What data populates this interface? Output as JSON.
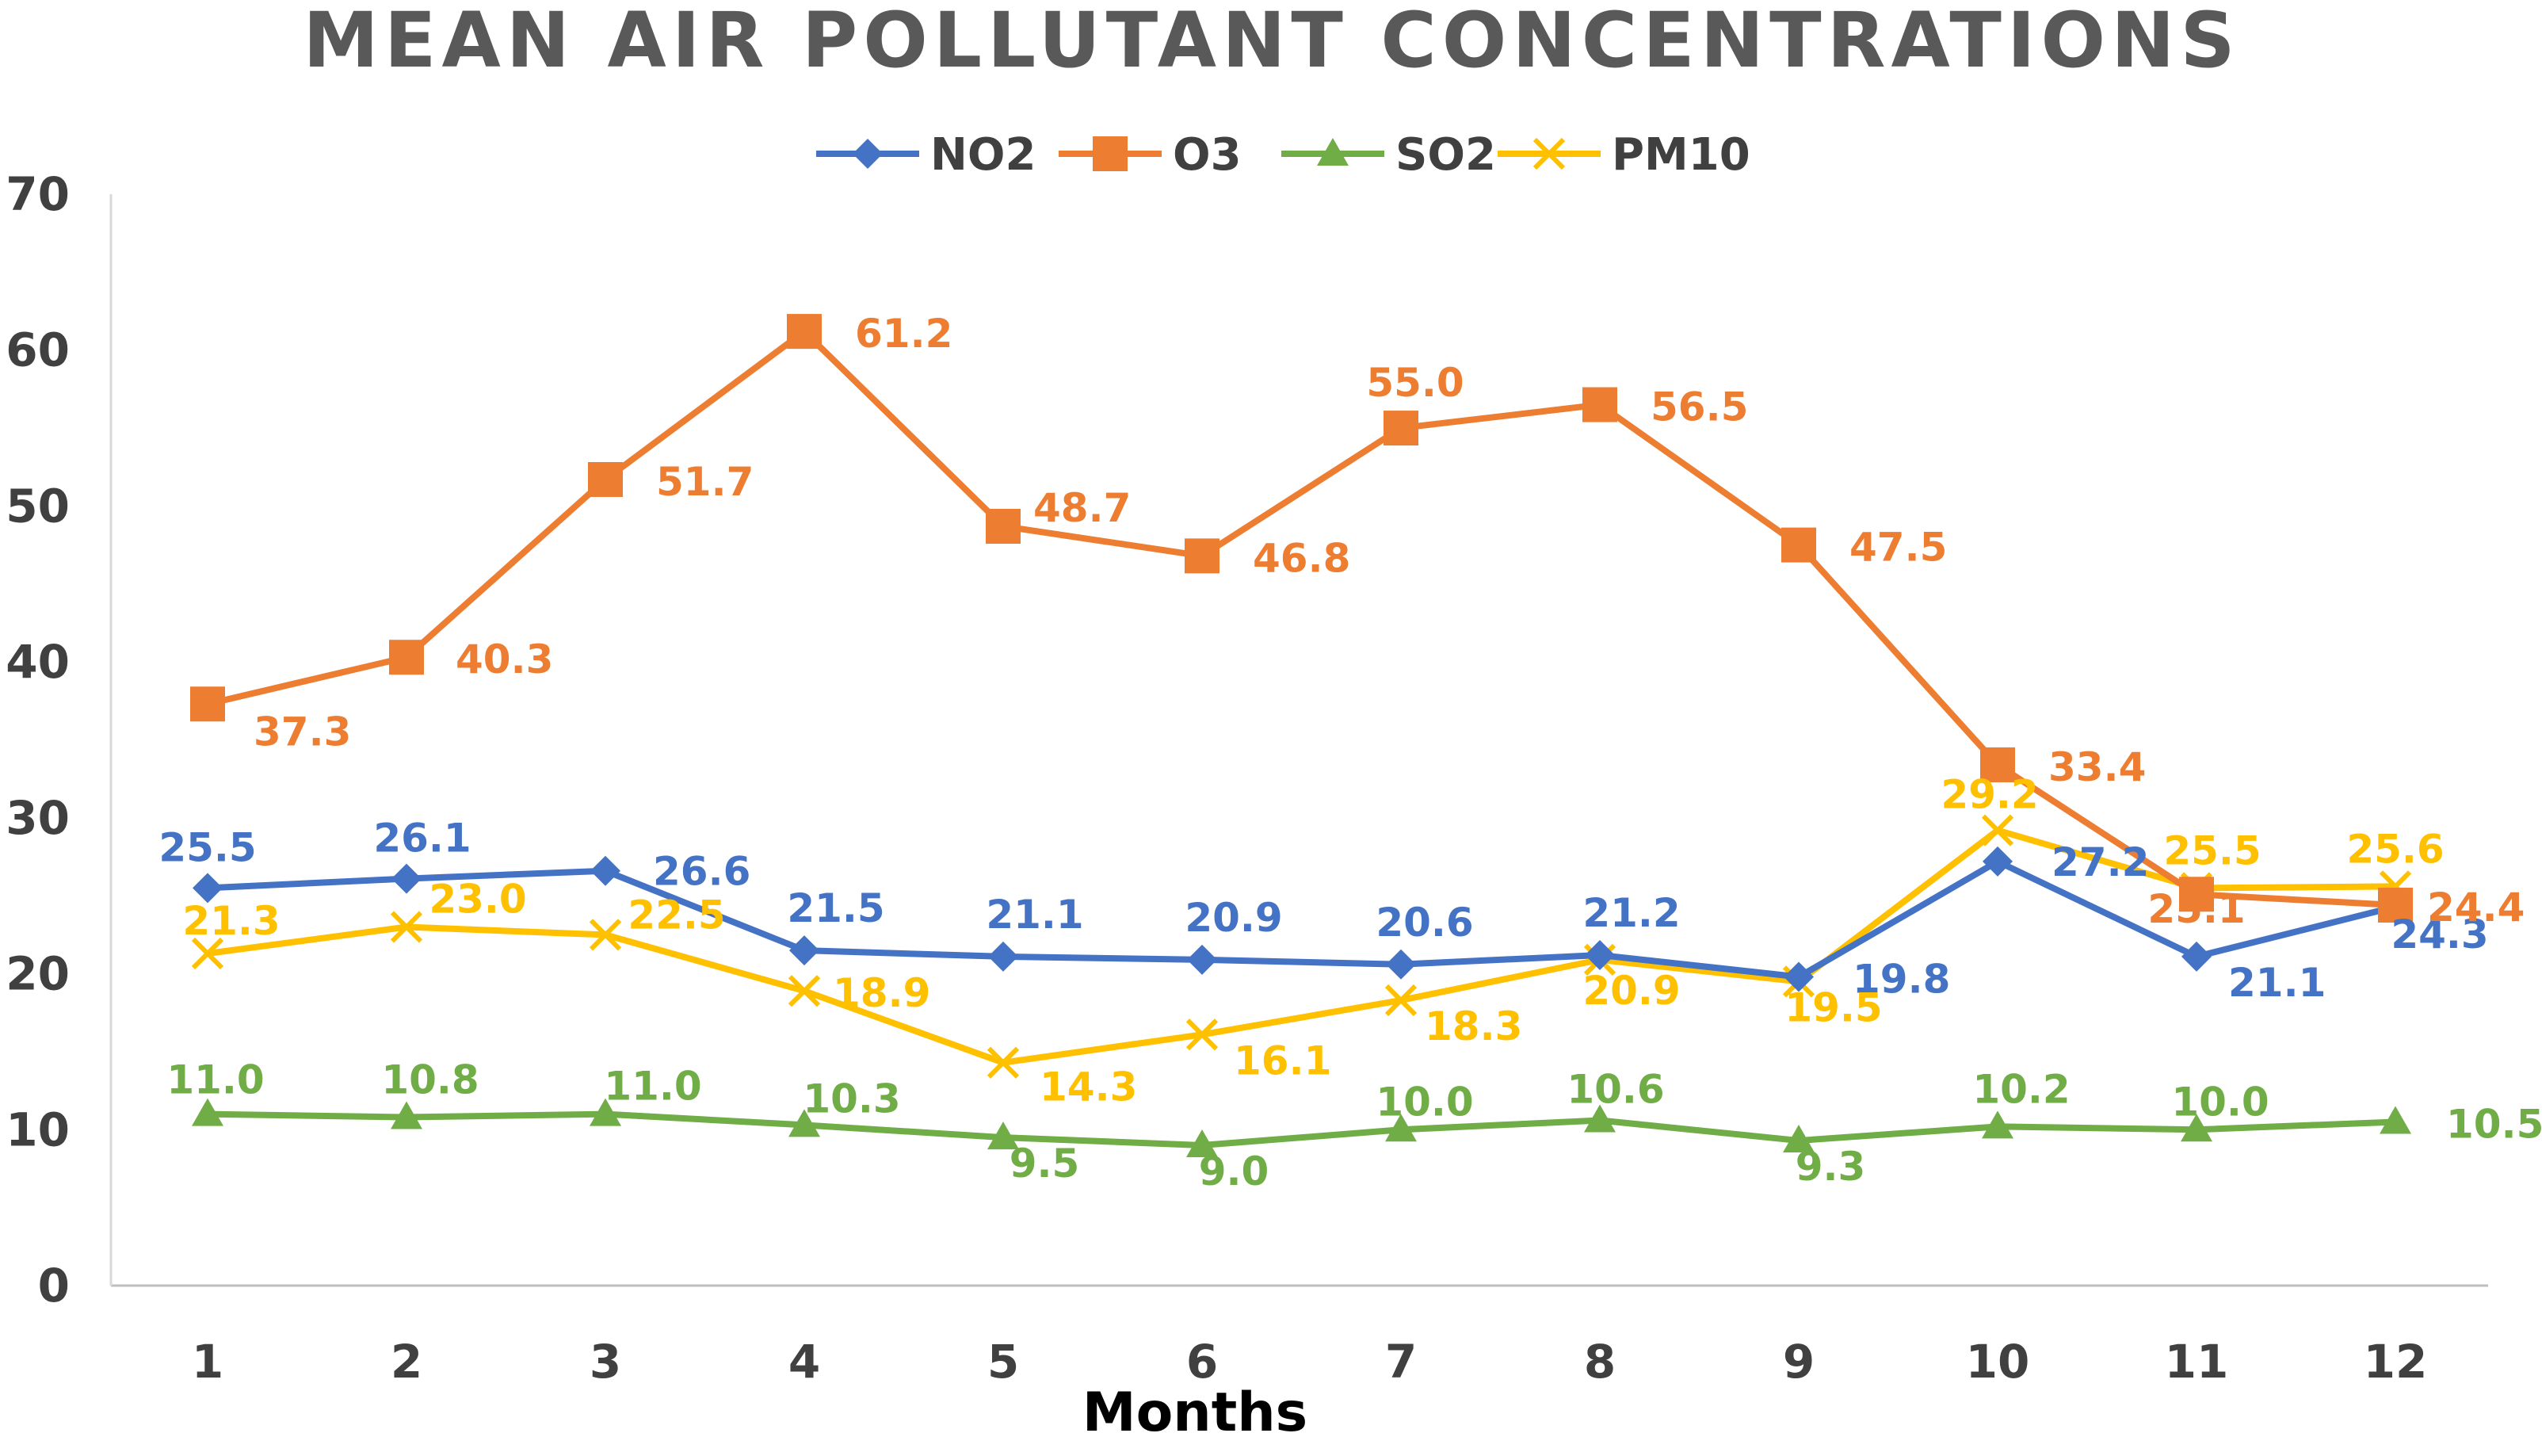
{
  "chart_data": {
    "type": "line",
    "title": "MEAN AIR POLLUTANT CONCENTRATIONS",
    "xlabel": "Months",
    "ylabel": "",
    "x": [
      "1",
      "2",
      "3",
      "4",
      "5",
      "6",
      "7",
      "8",
      "9",
      "10",
      "11",
      "12"
    ],
    "ylim": [
      0,
      70
    ],
    "yticks": [
      "0",
      "10",
      "20",
      "30",
      "40",
      "50",
      "60",
      "70"
    ],
    "grid": false,
    "legend": "top-center",
    "series": [
      {
        "name": "NO2",
        "color": "#4472C4",
        "marker": "diamond",
        "values": [
          25.5,
          26.1,
          26.6,
          21.5,
          21.1,
          20.9,
          20.6,
          21.2,
          19.8,
          27.2,
          21.1,
          24.3
        ],
        "labels": [
          "25.5",
          "26.1",
          "26.6",
          "21.5",
          "21.1",
          "20.9",
          "20.6",
          "21.2",
          "19.8",
          "27.2",
          "21.1",
          "24.3"
        ]
      },
      {
        "name": "O3",
        "color": "#ED7D31",
        "marker": "square",
        "values": [
          37.3,
          40.3,
          51.7,
          61.2,
          48.7,
          46.8,
          55.0,
          56.5,
          47.5,
          33.4,
          25.1,
          24.4
        ],
        "labels": [
          "37.3",
          "40.3",
          "51.7",
          "61.2",
          "48.7",
          "46.8",
          "55.0",
          "56.5",
          "47.5",
          "33.4",
          "25.1",
          "24.4"
        ]
      },
      {
        "name": "SO2",
        "color": "#70AD47",
        "marker": "triangle",
        "values": [
          11.0,
          10.8,
          11.0,
          10.3,
          9.5,
          9.0,
          10.0,
          10.6,
          9.3,
          10.2,
          10.0,
          10.5
        ],
        "labels": [
          "11.0",
          "10.8",
          "11.0",
          "10.3",
          "9.5",
          "9.0",
          "10.0",
          "10.6",
          "9.3",
          "10.2",
          "10.0",
          "10.5"
        ]
      },
      {
        "name": "PM10",
        "color": "#FFC000",
        "marker": "x",
        "values": [
          21.3,
          23.0,
          22.5,
          18.9,
          14.3,
          16.1,
          18.3,
          20.9,
          19.5,
          29.2,
          25.5,
          25.6
        ],
        "labels": [
          "21.3",
          "23.0",
          "22.5",
          "18.9",
          "14.3",
          "16.1",
          "18.3",
          "20.9",
          "19.5",
          "29.2",
          "25.5",
          "25.6"
        ]
      }
    ]
  }
}
